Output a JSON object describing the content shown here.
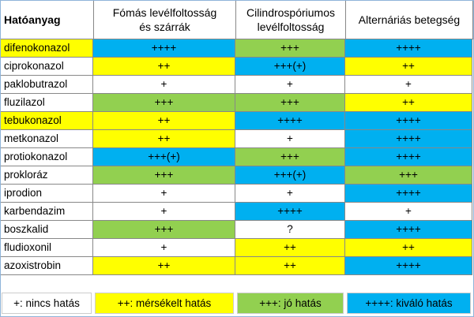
{
  "table": {
    "header": [
      "Hatóanyag",
      "Fómás levélfoltosság\nés szárrák",
      "Cilindrospóriumos\nlevélfoltosság",
      "Alternáriás betegség"
    ],
    "rows": [
      {
        "name": "difenokonazol",
        "name_color": "#ffff00",
        "cells": [
          {
            "text": "++++",
            "color": "#00b0f0"
          },
          {
            "text": "+++",
            "color": "#92d050"
          },
          {
            "text": "++++",
            "color": "#00b0f0"
          }
        ]
      },
      {
        "name": "ciprokonazol",
        "name_color": "#ffffff",
        "cells": [
          {
            "text": "++",
            "color": "#ffff00"
          },
          {
            "text": "+++(+)",
            "color": "#00b0f0"
          },
          {
            "text": "++",
            "color": "#ffff00"
          }
        ]
      },
      {
        "name": "paklobutrazol",
        "name_color": "#ffffff",
        "cells": [
          {
            "text": "+",
            "color": "#ffffff"
          },
          {
            "text": "+",
            "color": "#ffffff"
          },
          {
            "text": "+",
            "color": "#ffffff"
          }
        ]
      },
      {
        "name": "fluzilazol",
        "name_color": "#ffffff",
        "cells": [
          {
            "text": "+++",
            "color": "#92d050"
          },
          {
            "text": "+++",
            "color": "#92d050"
          },
          {
            "text": "++",
            "color": "#ffff00"
          }
        ]
      },
      {
        "name": "tebukonazol",
        "name_color": "#ffff00",
        "cells": [
          {
            "text": "++",
            "color": "#ffff00"
          },
          {
            "text": "++++",
            "color": "#00b0f0"
          },
          {
            "text": "++++",
            "color": "#00b0f0"
          }
        ]
      },
      {
        "name": "metkonazol",
        "name_color": "#ffffff",
        "cells": [
          {
            "text": "++",
            "color": "#ffff00"
          },
          {
            "text": "+",
            "color": "#ffffff"
          },
          {
            "text": "++++",
            "color": "#00b0f0"
          }
        ]
      },
      {
        "name": "protiokonazol",
        "name_color": "#ffffff",
        "cells": [
          {
            "text": "+++(+)",
            "color": "#00b0f0"
          },
          {
            "text": "+++",
            "color": "#92d050"
          },
          {
            "text": "++++",
            "color": "#00b0f0"
          }
        ]
      },
      {
        "name": "prokloráz",
        "name_color": "#ffffff",
        "cells": [
          {
            "text": "+++",
            "color": "#92d050"
          },
          {
            "text": "+++(+)",
            "color": "#00b0f0"
          },
          {
            "text": "+++",
            "color": "#92d050"
          }
        ]
      },
      {
        "name": "iprodion",
        "name_color": "#ffffff",
        "cells": [
          {
            "text": "+",
            "color": "#ffffff"
          },
          {
            "text": "+",
            "color": "#ffffff"
          },
          {
            "text": "++++",
            "color": "#00b0f0"
          }
        ]
      },
      {
        "name": "karbendazim",
        "name_color": "#ffffff",
        "cells": [
          {
            "text": "+",
            "color": "#ffffff"
          },
          {
            "text": "++++",
            "color": "#00b0f0"
          },
          {
            "text": "+",
            "color": "#ffffff"
          }
        ]
      },
      {
        "name": "boszkalid",
        "name_color": "#ffffff",
        "cells": [
          {
            "text": "+++",
            "color": "#92d050"
          },
          {
            "text": "?",
            "color": "#ffffff"
          },
          {
            "text": "++++",
            "color": "#00b0f0"
          }
        ]
      },
      {
        "name": "fludioxonil",
        "name_color": "#ffffff",
        "cells": [
          {
            "text": "+",
            "color": "#ffffff"
          },
          {
            "text": "++",
            "color": "#ffff00"
          },
          {
            "text": "++",
            "color": "#ffff00"
          }
        ]
      },
      {
        "name": "azoxistrobin",
        "name_color": "#ffffff",
        "cells": [
          {
            "text": "++",
            "color": "#ffff00"
          },
          {
            "text": "++",
            "color": "#ffff00"
          },
          {
            "text": "++++",
            "color": "#00b0f0"
          }
        ]
      }
    ]
  },
  "legend": [
    {
      "label": "+: nincs hatás",
      "color": "#ffffff"
    },
    {
      "label": "++: mérsékelt hatás",
      "color": "#ffff00"
    },
    {
      "label": "+++: jó hatás",
      "color": "#92d050"
    },
    {
      "label": "++++: kiváló hatás",
      "color": "#00b0f0"
    }
  ]
}
